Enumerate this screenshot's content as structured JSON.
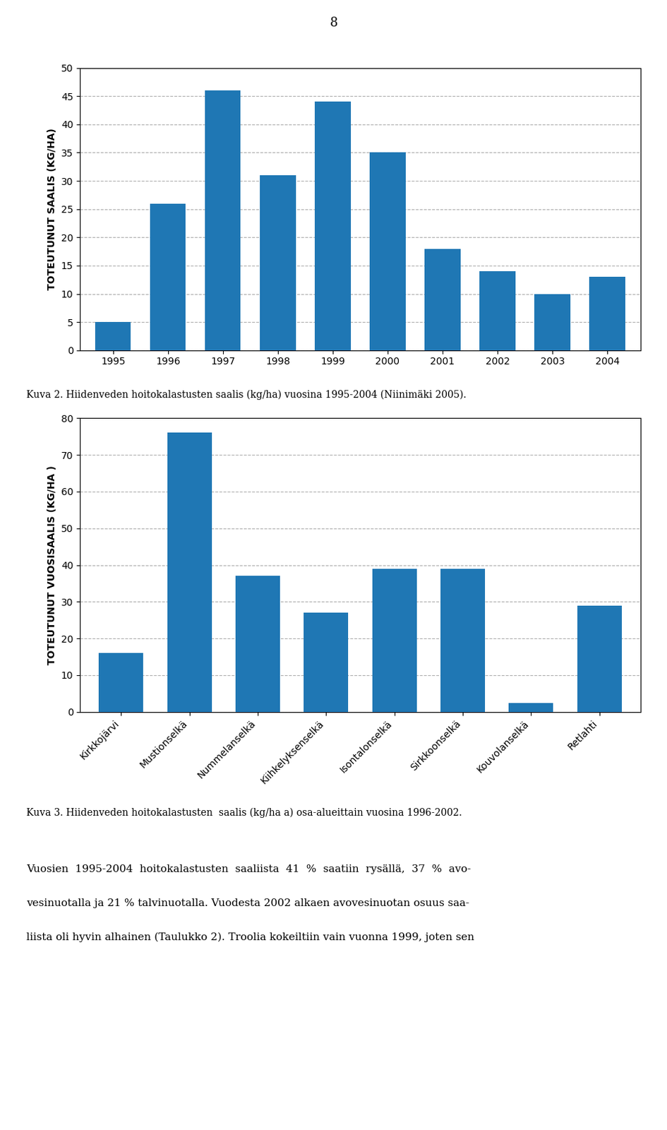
{
  "page_number": "8",
  "body_text": [
    "Vuosien  1995-2004  hoitokalastusten  saaliista  41  %  saatiin  rysällä,  37  %  avo-",
    "vesinuotalla ja 21 % talvinuotalla. Vuodesta 2002 alkaen avovesinuotan osuus saa-",
    "liista oli hyvin alhainen (Taulukko 2). Troolia kokeiltiin vain vuonna 1999, joten sen"
  ],
  "chart_data": [
    {
      "type": "bar",
      "categories": [
        1995,
        1996,
        1997,
        1998,
        1999,
        2000,
        2001,
        2002,
        2003,
        2004
      ],
      "values": [
        5,
        26,
        46,
        31,
        44,
        35,
        18,
        14,
        10,
        13
      ],
      "y_label": "TOTEUTUNUT SAALIS (KG/HA)",
      "ylim": [
        0,
        50
      ],
      "yticks": [
        0,
        5,
        10,
        15,
        20,
        25,
        30,
        35,
        40,
        45,
        50
      ],
      "grid": true,
      "annotations": [
        "Kuva 2. Hiidenveden hoitokalastusten saalis (kg/ha) vuosina 1995-2004 (Niinimäki 2005)."
      ]
    },
    {
      "type": "bar",
      "categories": [
        "Kirkkojärvi",
        "Mustionselkä",
        "Nummelanselkä",
        "Kiihkelyksenselkä",
        "Isontalonselkä",
        "Sirkkoonselkä",
        "Kouvolanselkä",
        "Retlahti"
      ],
      "values": [
        16,
        76,
        37,
        27,
        39,
        39,
        2.5,
        29
      ],
      "y_label": "TOTEUTUNUT VUOSISAALIS (KG/HA )",
      "ylim": [
        0,
        80
      ],
      "yticks": [
        0,
        10,
        20,
        30,
        40,
        50,
        60,
        70,
        80
      ],
      "grid": true,
      "annotations": [
        "Kuva 3. Hiidenveden hoitokalastusten  saalis (kg/ha a) osa-alueittain vuosina 1996-2002."
      ]
    }
  ]
}
